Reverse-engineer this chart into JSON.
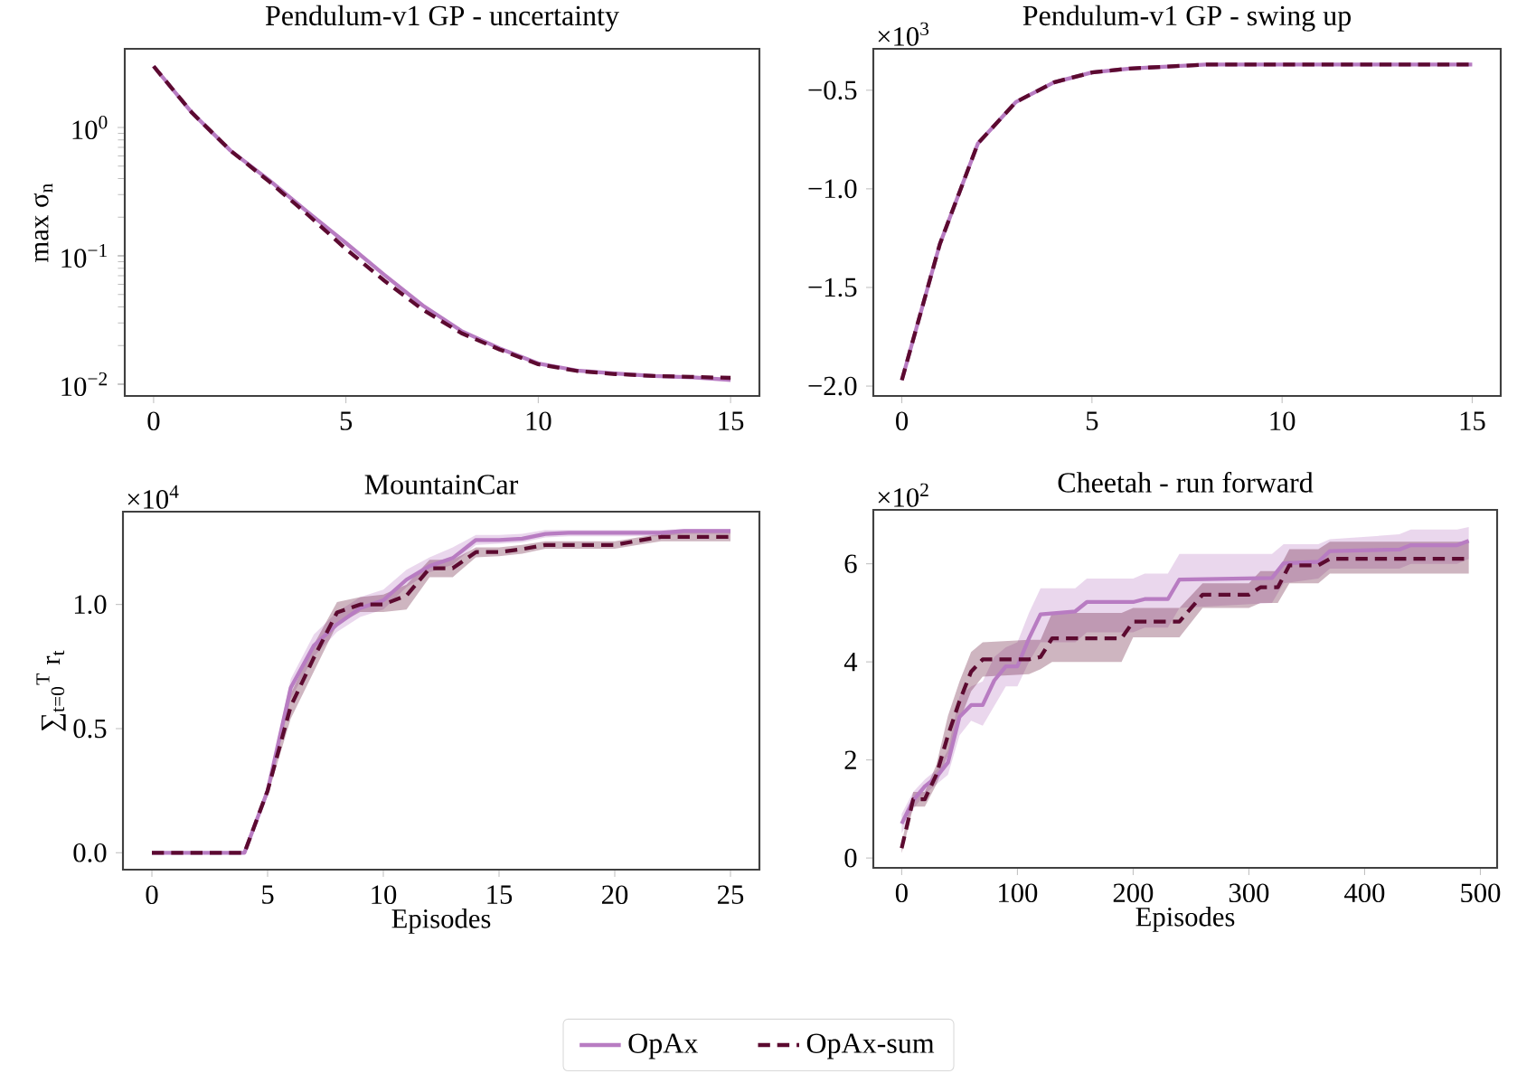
{
  "chart_data": [
    {
      "type": "line",
      "title": "Pendulum-v1 GP - uncertainty",
      "ylabel": "max σ$_{n}$",
      "log": "y",
      "legend": "bottom",
      "x": [
        0,
        1,
        2,
        3,
        4,
        5,
        6,
        7,
        8,
        9,
        10,
        11,
        12,
        13,
        14,
        15
      ],
      "xlim": [
        -0.75,
        15.75
      ],
      "xticks": [
        0,
        5,
        10,
        15
      ],
      "ylim": [
        0.0081,
        4.1
      ],
      "yticks": [
        {
          "value": 0.01,
          "label": "10$^{−2}$"
        },
        {
          "value": 0.1,
          "label": "10$^{−1}$"
        },
        {
          "value": 1,
          "label": "10$^{0}$"
        }
      ],
      "series": [
        {
          "name": "OpAx",
          "color": "#b87cc2",
          "line_style": "solid",
          "values": [
            3.0,
            1.3,
            0.66,
            0.39,
            0.22,
            0.126,
            0.071,
            0.041,
            0.026,
            0.019,
            0.0145,
            0.0128,
            0.0121,
            0.0116,
            0.0113,
            0.0108
          ]
        },
        {
          "name": "OpAx-sum",
          "color": "#5c0a30",
          "line_style": "dashed",
          "values": [
            3.0,
            1.3,
            0.66,
            0.38,
            0.21,
            0.113,
            0.064,
            0.038,
            0.025,
            0.0186,
            0.0143,
            0.0127,
            0.012,
            0.0116,
            0.0114,
            0.0112
          ]
        }
      ]
    },
    {
      "type": "line",
      "title": "Pendulum-v1 GP - swing up",
      "annotations": [
        "×10$^{3}$"
      ],
      "x": [
        0,
        1,
        2,
        3,
        4,
        5,
        6,
        7,
        8,
        9,
        10,
        11,
        12,
        13,
        14,
        15
      ],
      "xlim": [
        -0.75,
        15.75
      ],
      "xticks": [
        0,
        5,
        10,
        15
      ],
      "ylim": [
        -2.05,
        -0.29
      ],
      "yticks": [
        {
          "value": -2,
          "label": "−2.0"
        },
        {
          "value": -1.5,
          "label": "−1.5"
        },
        {
          "value": -1,
          "label": "−1.0"
        },
        {
          "value": -0.5,
          "label": "−0.5"
        }
      ],
      "series": [
        {
          "color": "#b87cc2",
          "line_style": "solid",
          "values": [
            -1.97,
            -1.28,
            -0.77,
            -0.56,
            -0.46,
            -0.41,
            -0.39,
            -0.38,
            -0.37,
            -0.37,
            -0.37,
            -0.37,
            -0.37,
            -0.37,
            -0.37,
            -0.37
          ]
        },
        {
          "color": "#5c0a30",
          "line_style": "dashed",
          "values": [
            -1.97,
            -1.28,
            -0.77,
            -0.56,
            -0.46,
            -0.41,
            -0.39,
            -0.38,
            -0.37,
            -0.37,
            -0.37,
            -0.37,
            -0.37,
            -0.37,
            -0.37,
            -0.37
          ]
        }
      ]
    },
    {
      "type": "line",
      "title": "MountainCar",
      "xlabel": "Episodes",
      "ylabel": "∑$_{t=0}$$^{T}$ r$_{t}$",
      "annotations": [
        "×10$^{4}$"
      ],
      "x": [
        0,
        1,
        2,
        3,
        4,
        5,
        6,
        7,
        8,
        9,
        10,
        11,
        12,
        13,
        14,
        15,
        16,
        17,
        18,
        19,
        20,
        21,
        22,
        23,
        24,
        25
      ],
      "xlim": [
        -1.25,
        26.25
      ],
      "xticks": [
        0,
        5,
        10,
        15,
        20,
        25
      ],
      "ylim": [
        -0.068,
        1.374
      ],
      "yticks": [
        {
          "value": 0,
          "label": "0.0"
        },
        {
          "value": 0.5,
          "label": "0.5"
        },
        {
          "value": 1,
          "label": "1.0"
        }
      ],
      "series": [
        {
          "color": "#b87cc2",
          "line_style": "solid",
          "values": [
            0,
            0,
            0,
            0,
            0,
            0.25,
            0.665,
            0.835,
            0.92,
            0.985,
            1.017,
            1.1,
            1.155,
            1.187,
            1.26,
            1.26,
            1.265,
            1.284,
            1.289,
            1.289,
            1.289,
            1.289,
            1.289,
            1.296,
            1.296,
            1.296
          ],
          "lower": [
            0,
            0,
            0,
            0,
            0,
            0.23,
            0.62,
            0.79,
            0.89,
            0.95,
            0.98,
            1.07,
            1.13,
            1.16,
            1.24,
            1.245,
            1.25,
            1.27,
            1.275,
            1.275,
            1.275,
            1.275,
            1.275,
            1.285,
            1.285,
            1.285
          ],
          "upper": [
            0,
            0,
            0,
            0,
            0,
            0.27,
            0.7,
            0.88,
            0.97,
            1.03,
            1.06,
            1.14,
            1.19,
            1.23,
            1.28,
            1.28,
            1.285,
            1.3,
            1.3,
            1.3,
            1.3,
            1.3,
            1.3,
            1.305,
            1.305,
            1.305
          ]
        },
        {
          "color": "#5c0a30",
          "line_style": "dashed",
          "values": [
            0,
            0,
            0,
            0,
            0,
            0.25,
            0.59,
            0.786,
            0.968,
            1.0,
            1.0,
            1.036,
            1.146,
            1.146,
            1.211,
            1.211,
            1.223,
            1.24,
            1.24,
            1.24,
            1.24,
            1.257,
            1.272,
            1.272,
            1.272,
            1.272
          ],
          "lower": [
            0,
            0,
            0,
            0,
            0,
            0.23,
            0.54,
            0.73,
            0.92,
            0.97,
            0.97,
            0.98,
            1.11,
            1.11,
            1.19,
            1.195,
            1.205,
            1.225,
            1.225,
            1.225,
            1.225,
            1.24,
            1.255,
            1.255,
            1.255,
            1.255
          ],
          "upper": [
            0,
            0,
            0,
            0,
            0,
            0.27,
            0.64,
            0.84,
            1.01,
            1.03,
            1.04,
            1.08,
            1.18,
            1.18,
            1.23,
            1.23,
            1.24,
            1.255,
            1.255,
            1.255,
            1.255,
            1.27,
            1.285,
            1.29,
            1.29,
            1.29
          ]
        }
      ]
    },
    {
      "type": "line",
      "title": "Cheetah - run forward",
      "xlabel": "Episodes",
      "annotations": [
        "×10$^{2}$"
      ],
      "xlim": [
        -24.5,
        514.5
      ],
      "xticks": [
        0,
        100,
        200,
        300,
        400,
        500
      ],
      "ylim": [
        -0.2,
        7.1
      ],
      "yticks": [
        0,
        2,
        4,
        6
      ],
      "series": [
        {
          "color": "#b87cc2",
          "line_style": "solid",
          "x": [
            0,
            10,
            20,
            30,
            40,
            50,
            60,
            70,
            80,
            90,
            100,
            110,
            120,
            150,
            160,
            200,
            210,
            230,
            240,
            320,
            330,
            360,
            370,
            430,
            440,
            480,
            490
          ],
          "values": [
            0.7,
            1.18,
            1.46,
            1.65,
            1.95,
            2.88,
            3.12,
            3.12,
            3.62,
            3.91,
            3.91,
            4.48,
            4.97,
            5.03,
            5.22,
            5.22,
            5.28,
            5.28,
            5.68,
            5.71,
            6.01,
            6.04,
            6.26,
            6.29,
            6.38,
            6.38,
            6.47
          ],
          "lower": [
            0.5,
            1.0,
            1.3,
            1.5,
            1.7,
            2.5,
            2.8,
            2.7,
            3.1,
            3.5,
            3.5,
            4.0,
            4.4,
            4.4,
            4.6,
            4.6,
            4.7,
            4.7,
            5.1,
            5.2,
            5.6,
            5.7,
            5.9,
            5.9,
            6.0,
            6.0,
            6.1
          ],
          "upper": [
            0.9,
            1.35,
            1.6,
            1.8,
            2.2,
            3.3,
            3.5,
            3.6,
            4.1,
            4.3,
            4.4,
            5.0,
            5.5,
            5.5,
            5.7,
            5.7,
            5.8,
            5.8,
            6.2,
            6.2,
            6.4,
            6.4,
            6.5,
            6.6,
            6.7,
            6.7,
            6.75
          ]
        },
        {
          "color": "#5c0a30",
          "line_style": "dashed",
          "x": [
            0,
            5,
            10,
            20,
            30,
            40,
            50,
            60,
            70,
            110,
            120,
            130,
            190,
            200,
            240,
            260,
            300,
            310,
            325,
            335,
            360,
            370,
            490
          ],
          "values": [
            0.2,
            0.7,
            1.2,
            1.2,
            1.7,
            2.5,
            3.2,
            3.8,
            4.05,
            4.05,
            4.1,
            4.48,
            4.48,
            4.82,
            4.82,
            5.37,
            5.37,
            5.52,
            5.52,
            5.97,
            5.97,
            6.1,
            6.1
          ],
          "lower": [
            0.1,
            0.55,
            1.05,
            1.05,
            1.5,
            2.1,
            2.8,
            3.4,
            3.7,
            3.75,
            3.85,
            4.0,
            4.0,
            4.5,
            4.5,
            5.1,
            5.1,
            5.2,
            5.2,
            5.6,
            5.6,
            5.8,
            5.8
          ],
          "upper": [
            0.3,
            0.85,
            1.35,
            1.35,
            1.9,
            2.9,
            3.6,
            4.2,
            4.4,
            4.45,
            4.45,
            5.0,
            5.0,
            5.1,
            5.1,
            5.6,
            5.6,
            5.85,
            5.85,
            6.3,
            6.3,
            6.45,
            6.45
          ]
        }
      ]
    }
  ]
}
